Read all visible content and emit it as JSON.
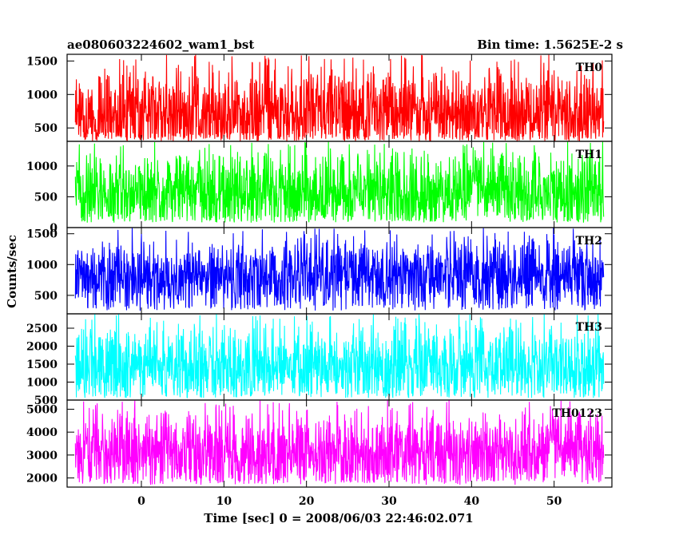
{
  "chart_data": {
    "type": "line",
    "title": "ae080603224602_wam1_bst",
    "subtitle": "Bin time: 1.5625E-2 s",
    "xlabel": "Time [sec] 0 = 2008/06/03 22:46:02.071",
    "ylabel": "Counts/sec",
    "xlim": [
      -9,
      57
    ],
    "x_ticks": [
      0,
      10,
      20,
      30,
      40,
      50
    ],
    "x_tick_labels": [
      "0",
      "10",
      "20",
      "30",
      "40",
      "50"
    ],
    "data_x_range": [
      -8,
      56
    ],
    "grid": false,
    "panels": [
      {
        "label": "TH0",
        "color": "#ff0000",
        "ylim": [
          300,
          1600
        ],
        "y_ticks": [
          500,
          1000,
          1500
        ],
        "y_tick_labels": [
          "500",
          "1000",
          "1500"
        ],
        "baseline": 700,
        "min": 300,
        "max": 1600
      },
      {
        "label": "TH1",
        "color": "#00ff00",
        "ylim": [
          0,
          1400
        ],
        "y_ticks": [
          0,
          500,
          1000
        ],
        "y_tick_labels": [
          "0",
          "500",
          "1000"
        ],
        "baseline": 550,
        "min": 80,
        "max": 1400
      },
      {
        "label": "TH2",
        "color": "#0000ff",
        "ylim": [
          200,
          1600
        ],
        "y_ticks": [
          500,
          1000,
          1500
        ],
        "y_tick_labels": [
          "500",
          "1000",
          "1500"
        ],
        "baseline": 800,
        "min": 250,
        "max": 1600
      },
      {
        "label": "TH3",
        "color": "#00ffff",
        "ylim": [
          500,
          2900
        ],
        "y_ticks": [
          500,
          1000,
          1500,
          2000,
          2500
        ],
        "y_tick_labels": [
          "500",
          "1000",
          "1500",
          "2000",
          "2500"
        ],
        "baseline": 1450,
        "min": 560,
        "max": 2900
      },
      {
        "label": "TH0123",
        "color": "#ff00ff",
        "ylim": [
          1600,
          5400
        ],
        "y_ticks": [
          2000,
          3000,
          4000,
          5000
        ],
        "y_tick_labels": [
          "2000",
          "3000",
          "4000",
          "5000"
        ],
        "baseline": 3100,
        "min": 1700,
        "max": 5400
      }
    ]
  }
}
